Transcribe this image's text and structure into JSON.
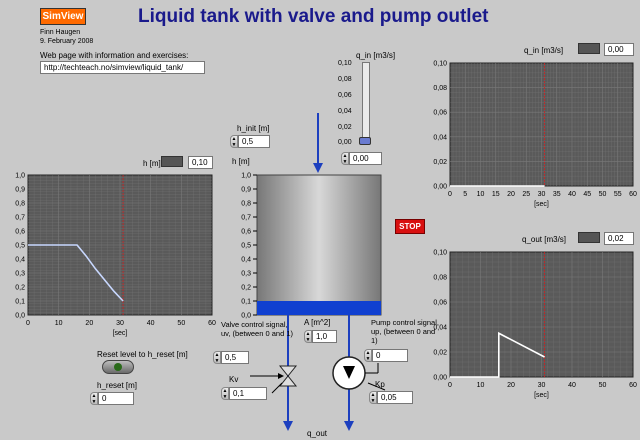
{
  "header": {
    "logo_text": "SimView",
    "title": "Liquid tank with valve and pump outlet",
    "author": "Finn Haugen",
    "date": "9. February 2008",
    "web_label": "Web page with information and exercises:",
    "web_url": "http://techteach.no/simview/liquid_tank/"
  },
  "controls": {
    "q_in_label": "q_in [m3/s]",
    "q_in_value": "0,00",
    "q_in_ticks": [
      "0,10",
      "0,08",
      "0,06",
      "0,04",
      "0,02",
      "0,00"
    ],
    "h_init_label": "h_init [m]",
    "h_init_value": "0,5",
    "h_label": "h [m]",
    "A_label": "A [m^2]",
    "A_value": "1,0",
    "valve_label": "Valve control signal, uv, (between 0 and 1)",
    "valve_value": "0,5",
    "kv_label": "Kv",
    "kv_value": "0,1",
    "pump_label": "Pump control signal, up, (between 0 and 1)",
    "pump_value": "0",
    "kp_label": "Kp",
    "kp_value": "0,05",
    "q_out_label": "q_out",
    "reset_label": "Reset level to h_reset [m]",
    "h_reset_label": "h_reset [m]",
    "h_reset_value": "0",
    "stop_label": "STOP"
  },
  "tank": {
    "ticks": [
      "1,0",
      "0,9",
      "0,8",
      "0,7",
      "0,6",
      "0,5",
      "0,4",
      "0,3",
      "0,2",
      "0,1",
      "0,0"
    ],
    "level": 0.1,
    "liquid_color": "#1040d0"
  },
  "colors": {
    "plot_bg": "#5a5a5a",
    "grid": "#7a7a7a",
    "trace": "#ffffff",
    "cursor": "#d02020",
    "title": "#1a1a8c"
  },
  "chart_data": [
    {
      "type": "line",
      "id": "h-chart",
      "legend_label": "h [m]",
      "legend_value": "0,10",
      "xlabel": "[sec]",
      "xlim": [
        0,
        60
      ],
      "ylim": [
        0,
        1.0
      ],
      "x_ticks": [
        "0",
        "10",
        "20",
        "30",
        "40",
        "50",
        "60"
      ],
      "y_ticks": [
        "0,0",
        "0,1",
        "0,2",
        "0,3",
        "0,4",
        "0,5",
        "0,6",
        "0,7",
        "0,8",
        "0,9",
        "1,0"
      ],
      "cursor_x": 31,
      "trace_color": "#c8d8ff",
      "x": [
        0,
        16,
        19,
        22,
        25,
        28,
        31
      ],
      "y": [
        0.5,
        0.5,
        0.42,
        0.33,
        0.25,
        0.17,
        0.1
      ]
    },
    {
      "type": "line",
      "id": "qin-chart",
      "legend_label": "q_in [m3/s]",
      "legend_value": "0,00",
      "xlabel": "[sec]",
      "xlim": [
        0,
        60
      ],
      "ylim": [
        0,
        0.1
      ],
      "x_ticks": [
        "0",
        "5",
        "10",
        "15",
        "20",
        "25",
        "30",
        "35",
        "40",
        "45",
        "50",
        "55",
        "60"
      ],
      "y_ticks": [
        "0,00",
        "0,02",
        "0,04",
        "0,06",
        "0,08",
        "0,10"
      ],
      "cursor_x": 31,
      "trace_color": "#ffffff",
      "x": [
        0,
        31
      ],
      "y": [
        0,
        0
      ]
    },
    {
      "type": "line",
      "id": "qout-chart",
      "legend_label": "q_out [m3/s]",
      "legend_value": "0,02",
      "xlabel": "[sec]",
      "xlim": [
        0,
        60
      ],
      "ylim": [
        0,
        0.1
      ],
      "x_ticks": [
        "0",
        "10",
        "20",
        "30",
        "40",
        "50",
        "60"
      ],
      "y_ticks": [
        "0,00",
        "0,02",
        "0,04",
        "0,06",
        "0,08",
        "0,10"
      ],
      "cursor_x": 31,
      "trace_color": "#ffffff",
      "x": [
        0,
        16,
        16,
        31
      ],
      "y": [
        0,
        0,
        0.035,
        0.016
      ]
    }
  ]
}
